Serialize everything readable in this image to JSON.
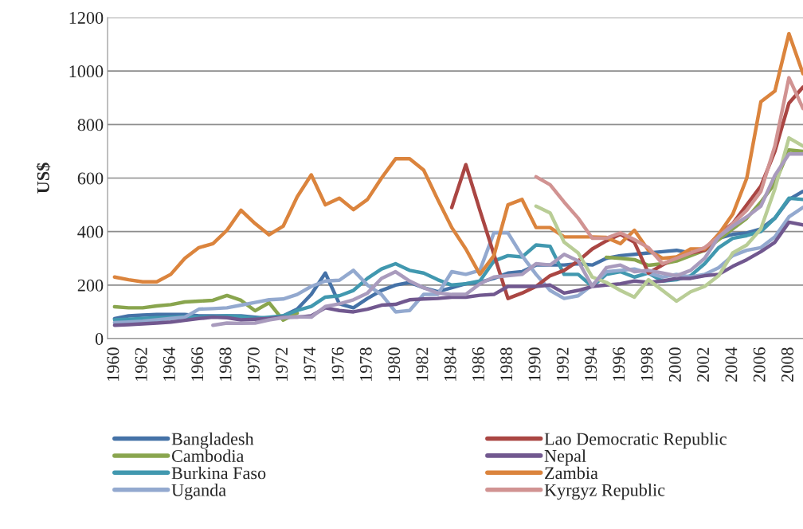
{
  "chart_data": {
    "type": "line",
    "ylabel": "US$",
    "x": [
      1960,
      1961,
      1962,
      1963,
      1964,
      1965,
      1966,
      1967,
      1968,
      1969,
      1970,
      1971,
      1972,
      1973,
      1974,
      1975,
      1976,
      1977,
      1978,
      1979,
      1980,
      1981,
      1982,
      1983,
      1984,
      1985,
      1986,
      1987,
      1988,
      1989,
      1990,
      1991,
      1992,
      1993,
      1994,
      1995,
      1996,
      1997,
      1998,
      1999,
      2000,
      2001,
      2002,
      2003,
      2004,
      2005,
      2006,
      2007,
      2008,
      2009
    ],
    "xlim": [
      1959.5,
      2009
    ],
    "xticks": [
      1960,
      1962,
      1964,
      1966,
      1968,
      1970,
      1972,
      1974,
      1976,
      1978,
      1980,
      1982,
      1984,
      1986,
      1988,
      1990,
      1992,
      1994,
      1996,
      1998,
      2000,
      2002,
      2004,
      2006,
      2008
    ],
    "ylim": [
      0,
      1200
    ],
    "yticks": [
      0,
      200,
      400,
      600,
      800,
      1000,
      1200
    ],
    "grid": "y",
    "legend": "bottom",
    "marker": "none",
    "line_style": "solid",
    "series": [
      {
        "name": "Bangladesh",
        "color": "#4572a7",
        "values": [
          75,
          85,
          88,
          90,
          90,
          90,
          85,
          85,
          85,
          85,
          80,
          75,
          85,
          110,
          165,
          245,
          130,
          115,
          150,
          180,
          200,
          210,
          190,
          175,
          190,
          205,
          210,
          225,
          245,
          250,
          275,
          275,
          275,
          280,
          275,
          300,
          310,
          315,
          320,
          325,
          330,
          320,
          330,
          375,
          390,
          395,
          410,
          450,
          520,
          550
        ]
      },
      {
        "name": "Cambodia",
        "color": "#89a54e",
        "values": [
          119,
          115,
          115,
          122,
          127,
          137,
          140,
          143,
          161,
          143,
          104,
          134,
          69,
          95,
          null,
          null,
          null,
          null,
          null,
          null,
          null,
          null,
          null,
          null,
          null,
          null,
          null,
          null,
          null,
          null,
          null,
          null,
          null,
          null,
          null,
          304,
          300,
          295,
          274,
          280,
          290,
          310,
          330,
          370,
          410,
          450,
          510,
          580,
          705,
          700
        ]
      },
      {
        "name": "Burkina Faso",
        "color": "#4198af",
        "values": [
          70,
          72,
          75,
          78,
          80,
          82,
          80,
          82,
          85,
          82,
          75,
          80,
          85,
          105,
          120,
          155,
          160,
          180,
          225,
          260,
          280,
          255,
          245,
          220,
          200,
          205,
          215,
          290,
          310,
          305,
          350,
          345,
          240,
          240,
          195,
          240,
          250,
          230,
          245,
          215,
          220,
          235,
          280,
          340,
          375,
          385,
          400,
          450,
          525,
          520
        ]
      },
      {
        "name": "Uganda",
        "color": "#93a9cf",
        "values": [
          60,
          62,
          65,
          70,
          75,
          80,
          110,
          112,
          115,
          125,
          135,
          145,
          148,
          165,
          195,
          215,
          218,
          255,
          200,
          165,
          100,
          105,
          165,
          165,
          250,
          240,
          255,
          395,
          395,
          310,
          240,
          180,
          150,
          160,
          200,
          250,
          255,
          260,
          245,
          230,
          240,
          230,
          240,
          265,
          310,
          330,
          340,
          380,
          455,
          490
        ]
      },
      {
        "name": "Lao Democratic Republic",
        "color": "#aa4643",
        "values": [
          null,
          null,
          null,
          null,
          null,
          null,
          null,
          null,
          null,
          null,
          null,
          null,
          null,
          null,
          null,
          null,
          null,
          null,
          null,
          null,
          null,
          null,
          null,
          null,
          490,
          650,
          480,
          315,
          150,
          170,
          195,
          235,
          255,
          290,
          335,
          365,
          390,
          360,
          245,
          275,
          305,
          320,
          330,
          390,
          430,
          500,
          570,
          700,
          880,
          940
        ]
      },
      {
        "name": "Nepal",
        "color": "#71588f",
        "values": [
          50,
          52,
          55,
          58,
          62,
          68,
          75,
          80,
          78,
          70,
          72,
          75,
          80,
          80,
          85,
          115,
          105,
          100,
          110,
          125,
          128,
          145,
          148,
          150,
          155,
          155,
          162,
          165,
          195,
          195,
          195,
          200,
          170,
          180,
          195,
          200,
          205,
          215,
          210,
          215,
          225,
          225,
          235,
          240,
          270,
          295,
          325,
          360,
          435,
          425
        ]
      },
      {
        "name": "Zambia",
        "color": "#db843d",
        "values": [
          230,
          220,
          212,
          212,
          240,
          300,
          340,
          355,
          405,
          480,
          430,
          388,
          420,
          530,
          612,
          500,
          525,
          482,
          520,
          600,
          672,
          672,
          630,
          520,
          415,
          335,
          240,
          310,
          500,
          520,
          415,
          415,
          380,
          380,
          380,
          378,
          355,
          405,
          330,
          300,
          305,
          335,
          335,
          390,
          465,
          600,
          885,
          925,
          1140,
          990
        ]
      },
      {
        "name": "Kyrgyz Republic",
        "color": "#d19392",
        "values": [
          null,
          null,
          null,
          null,
          null,
          null,
          null,
          null,
          null,
          null,
          null,
          null,
          null,
          null,
          null,
          null,
          null,
          null,
          null,
          null,
          null,
          null,
          null,
          null,
          null,
          null,
          null,
          null,
          null,
          null,
          605,
          575,
          510,
          450,
          375,
          375,
          395,
          370,
          340,
          280,
          300,
          320,
          340,
          380,
          430,
          480,
          550,
          720,
          975,
          860
        ]
      },
      {
        "color": "#b9cd96",
        "values": [
          null,
          null,
          null,
          null,
          null,
          null,
          null,
          null,
          null,
          null,
          null,
          null,
          null,
          null,
          null,
          null,
          null,
          null,
          null,
          null,
          null,
          null,
          null,
          null,
          null,
          null,
          null,
          null,
          null,
          null,
          495,
          470,
          360,
          320,
          230,
          210,
          180,
          155,
          220,
          180,
          140,
          175,
          195,
          235,
          320,
          350,
          410,
          560,
          750,
          720
        ]
      },
      {
        "color": "#a99bbd",
        "values": [
          null,
          null,
          null,
          null,
          null,
          null,
          null,
          50,
          58,
          57,
          58,
          70,
          78,
          82,
          80,
          120,
          130,
          145,
          170,
          225,
          250,
          215,
          190,
          170,
          165,
          165,
          205,
          230,
          235,
          240,
          280,
          275,
          315,
          290,
          195,
          265,
          275,
          250,
          255,
          245,
          235,
          255,
          300,
          380,
          420,
          455,
          495,
          610,
          690,
          690
        ]
      }
    ]
  }
}
